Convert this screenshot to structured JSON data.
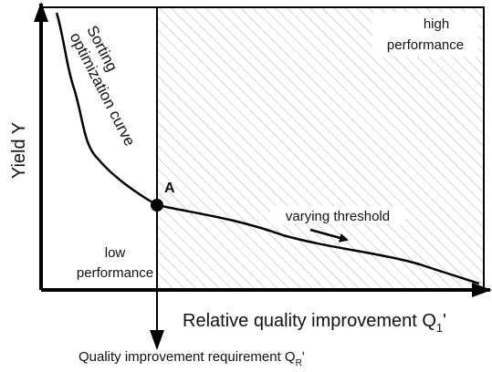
{
  "axes": {
    "y_label": "Yield Y",
    "x_label": {
      "text": "Relative quality improvement Q",
      "subscript": "1",
      "suffix": "'"
    },
    "requirement": {
      "text": "Quality improvement requirement Q",
      "subscript": "R",
      "suffix": "'"
    }
  },
  "curve": {
    "label_line1": "Sorting",
    "label_line2": "optimization curve"
  },
  "point": {
    "label": "A"
  },
  "threshold": {
    "label": "varying threshold"
  },
  "regions": {
    "high": {
      "line1": "high",
      "line2": "performance"
    },
    "low": {
      "line1": "low",
      "line2": "performance"
    }
  }
}
